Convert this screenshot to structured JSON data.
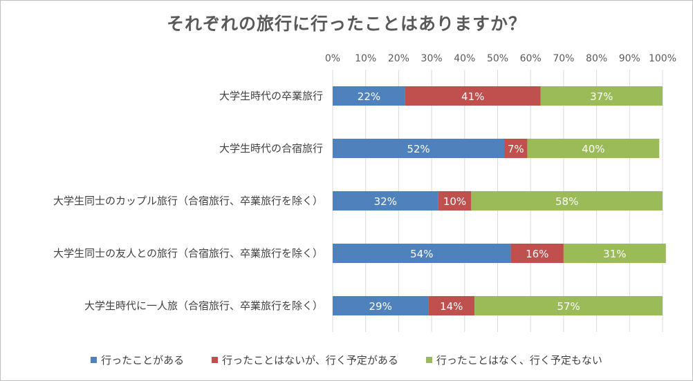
{
  "chart_data": {
    "type": "bar",
    "orientation": "horizontal",
    "stacked": "percent",
    "title": "それぞれの旅行に行ったことはありますか？",
    "categories": [
      "大学生時代の卒業旅行",
      "大学生時代の合宿旅行",
      "大学生同士のカップル旅行（合宿旅行、卒業旅行を除く）",
      "大学生同士の友人との旅行（合宿旅行、卒業旅行を除く）",
      "大学生時代に一人旅（合宿旅行、卒業旅行を除く）"
    ],
    "series": [
      {
        "name": "行ったことがある",
        "color": "#4f81bd",
        "values": [
          22,
          52,
          32,
          54,
          29
        ],
        "labels": [
          "22%",
          "52%",
          "32%",
          "54%",
          "29%"
        ]
      },
      {
        "name": "行ったことはないが、行く予定がある",
        "color": "#c0504d",
        "values": [
          41,
          7,
          10,
          16,
          14
        ],
        "labels": [
          "41%",
          "7%",
          "10%",
          "16%",
          "14%"
        ]
      },
      {
        "name": "行ったことはなく、行く予定もない",
        "color": "#9bbb59",
        "values": [
          37,
          40,
          58,
          31,
          57
        ],
        "labels": [
          "37%",
          "40%",
          "58%",
          "31%",
          "57%"
        ]
      }
    ],
    "xlim": [
      0,
      100
    ],
    "xticks": [
      "0%",
      "10%",
      "20%",
      "30%",
      "40%",
      "50%",
      "60%",
      "70%",
      "80%",
      "90%",
      "100%"
    ],
    "grid": true,
    "axis_position": "top",
    "legend_position": "bottom"
  }
}
